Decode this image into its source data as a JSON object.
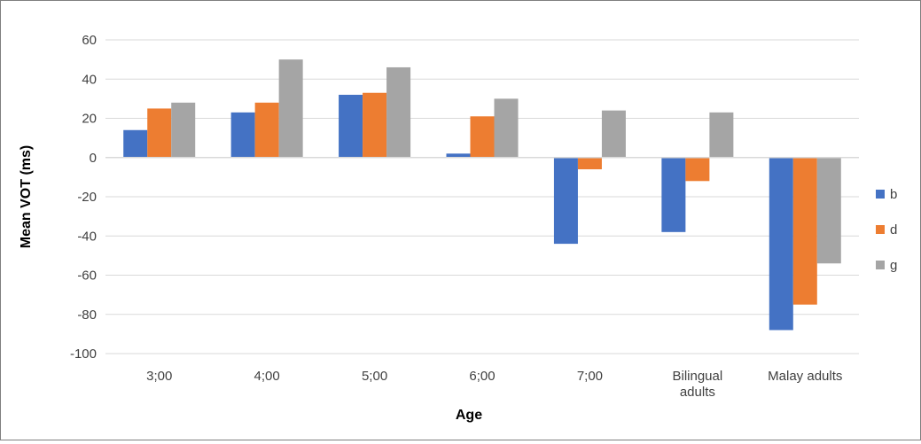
{
  "chart_data": {
    "type": "bar",
    "title": "",
    "xlabel": "Age",
    "ylabel": "Mean VOT (ms)",
    "categories": [
      "3;00",
      "4;00",
      "5;00",
      "6;00",
      "7;00",
      "Bilingual adults",
      "Malay adults"
    ],
    "category_label_lines": [
      [
        "3;00"
      ],
      [
        "4;00"
      ],
      [
        "5;00"
      ],
      [
        "6;00"
      ],
      [
        "7;00"
      ],
      [
        "Bilingual",
        "adults"
      ],
      [
        "Malay adults"
      ]
    ],
    "series": [
      {
        "name": "b",
        "color": "#4472c4",
        "values": [
          14,
          23,
          32,
          2,
          -44,
          -38,
          -88
        ]
      },
      {
        "name": "d",
        "color": "#ed7d31",
        "values": [
          25,
          28,
          33,
          21,
          -6,
          -12,
          -75
        ]
      },
      {
        "name": "g",
        "color": "#a5a5a5",
        "values": [
          28,
          50,
          46,
          30,
          24,
          23,
          -54
        ]
      }
    ],
    "ylim": [
      -100,
      60
    ],
    "yticks": [
      60,
      40,
      20,
      0,
      -20,
      -40,
      -60,
      -80,
      -100
    ],
    "grid": true,
    "gridline_color": "#d9d9d9",
    "legend_position": "right"
  }
}
